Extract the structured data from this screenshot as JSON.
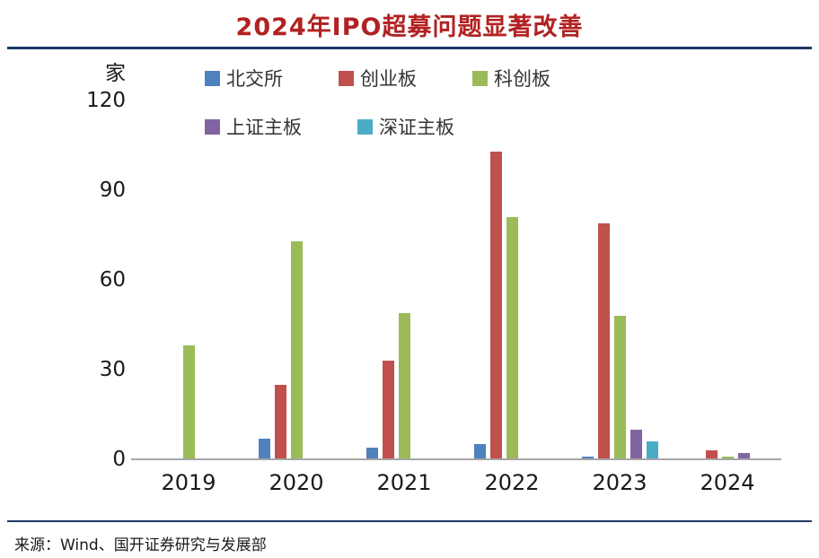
{
  "title": "2024年IPO超募问题显著改善",
  "unit_label": "家",
  "source": "来源：Wind、国开证券研究与发展部",
  "accent_colors": {
    "title": "#B22222",
    "rule": "#1F3864",
    "axis_line": "#A6A6A6"
  },
  "chart_data": {
    "type": "bar",
    "title": "2024年IPO超募问题显著改善",
    "unit": "家",
    "categories": [
      "2019",
      "2020",
      "2021",
      "2022",
      "2023",
      "2024"
    ],
    "series": [
      {
        "name": "北交所",
        "color": "#4F81BD",
        "values": [
          0,
          7,
          4,
          5,
          1,
          0
        ]
      },
      {
        "name": "创业板",
        "color": "#C0504D",
        "values": [
          0,
          25,
          33,
          103,
          79,
          3
        ]
      },
      {
        "name": "科创板",
        "color": "#9BBB59",
        "values": [
          38,
          73,
          49,
          81,
          48,
          1
        ]
      },
      {
        "name": "上证主板",
        "color": "#8064A2",
        "values": [
          0,
          0,
          0,
          0,
          10,
          2
        ]
      },
      {
        "name": "深证主板",
        "color": "#4BACC6",
        "values": [
          0,
          0,
          0,
          0,
          6,
          0
        ]
      }
    ],
    "ylim": [
      0,
      120
    ],
    "yticks": [
      0,
      30,
      60,
      90,
      120
    ],
    "grid": false,
    "legend_position": "top-left"
  }
}
